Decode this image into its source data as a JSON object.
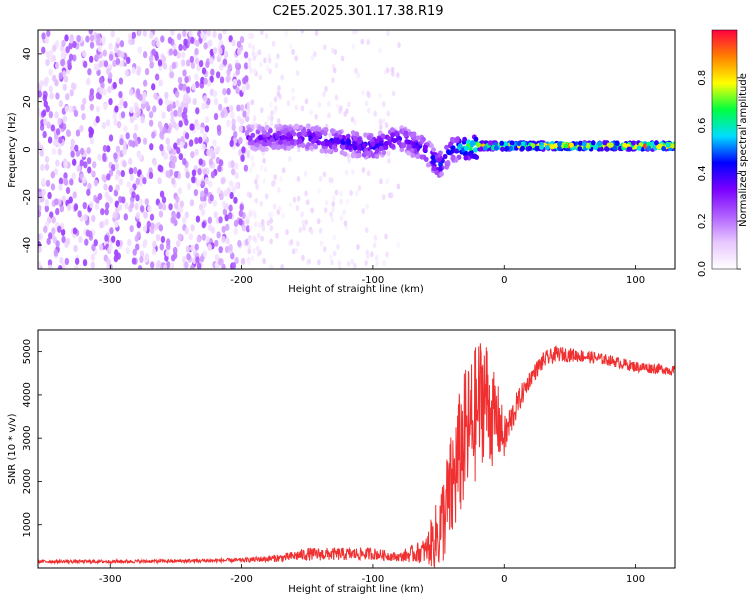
{
  "title": "C2E5.2025.301.17.38.R19",
  "chart_data": [
    {
      "type": "heatmap",
      "name": "spectrogram",
      "title": "C2E5.2025.301.17.38.R19",
      "xlabel": "Height of straight line (km)",
      "ylabel": "Frequency (Hz)",
      "xlim": [
        -355,
        130
      ],
      "ylim": [
        -50,
        50
      ],
      "x_ticks": [
        -300,
        -200,
        -100,
        0,
        100
      ],
      "y_ticks": [
        -40,
        -20,
        0,
        20,
        40
      ],
      "colorbar": {
        "label": "Normalized spectral amplitude",
        "range": [
          0,
          1
        ],
        "ticks": [
          0.0,
          0.2,
          0.4,
          0.6,
          0.8
        ],
        "tick_labels": [
          "0.0",
          "0.2",
          "0.4",
          "0.6",
          "0.8"
        ],
        "colors": [
          "#ffffff",
          "#e8c8ff",
          "#b060ff",
          "#7a00ff",
          "#0000ff",
          "#00ddff",
          "#00ff40",
          "#ffff00",
          "#ff8000",
          "#ff0040"
        ]
      },
      "features": [
        {
          "description": "broadband noise",
          "x_range": [
            -355,
            -195
          ],
          "y_range": [
            -50,
            50
          ],
          "amplitude": 0.25
        },
        {
          "description": "fading noise",
          "x_range": [
            -195,
            -80
          ],
          "y_range": [
            -50,
            50
          ],
          "amplitude": 0.08
        },
        {
          "description": "signal ridge",
          "x": [
            -195,
            -150,
            -100,
            -80,
            -60,
            -50,
            -40,
            -30,
            -20,
            0,
            100,
            130
          ],
          "y": [
            5,
            5,
            1,
            5,
            0,
            -7,
            0,
            1,
            1.5,
            1.5,
            1.5,
            1.5
          ],
          "amplitude": [
            0.35,
            0.4,
            0.45,
            0.4,
            0.45,
            0.5,
            0.45,
            0.7,
            0.85,
            0.9,
            0.95,
            0.9
          ]
        }
      ]
    },
    {
      "type": "line",
      "name": "snr",
      "xlabel": "Height of straight line (km)",
      "ylabel": "SNR (10 * v/v)",
      "xlim": [
        -355,
        130
      ],
      "ylim": [
        0,
        5500
      ],
      "x_ticks": [
        -300,
        -200,
        -100,
        0,
        100
      ],
      "y_ticks": [
        1000,
        2000,
        3000,
        4000,
        5000
      ],
      "color": "#f03030",
      "series": [
        {
          "name": "SNR",
          "x": [
            -355,
            -300,
            -250,
            -200,
            -170,
            -150,
            -120,
            -100,
            -80,
            -60,
            -50,
            -40,
            -35,
            -30,
            -25,
            -20,
            -15,
            -10,
            -5,
            0,
            10,
            20,
            30,
            40,
            60,
            80,
            100,
            120,
            130
          ],
          "values": [
            150,
            150,
            160,
            180,
            230,
            320,
            320,
            330,
            250,
            400,
            800,
            1800,
            2500,
            3000,
            3300,
            3700,
            4100,
            3500,
            3400,
            3000,
            3800,
            4400,
            4800,
            4950,
            4900,
            4800,
            4650,
            4600,
            4550
          ],
          "noise_amplitude": [
            40,
            40,
            40,
            50,
            90,
            150,
            150,
            140,
            100,
            300,
            900,
            1400,
            1500,
            1600,
            1600,
            1600,
            1500,
            1200,
            900,
            500,
            300,
            200,
            200,
            180,
            150,
            130,
            130,
            120,
            120
          ]
        }
      ]
    }
  ]
}
